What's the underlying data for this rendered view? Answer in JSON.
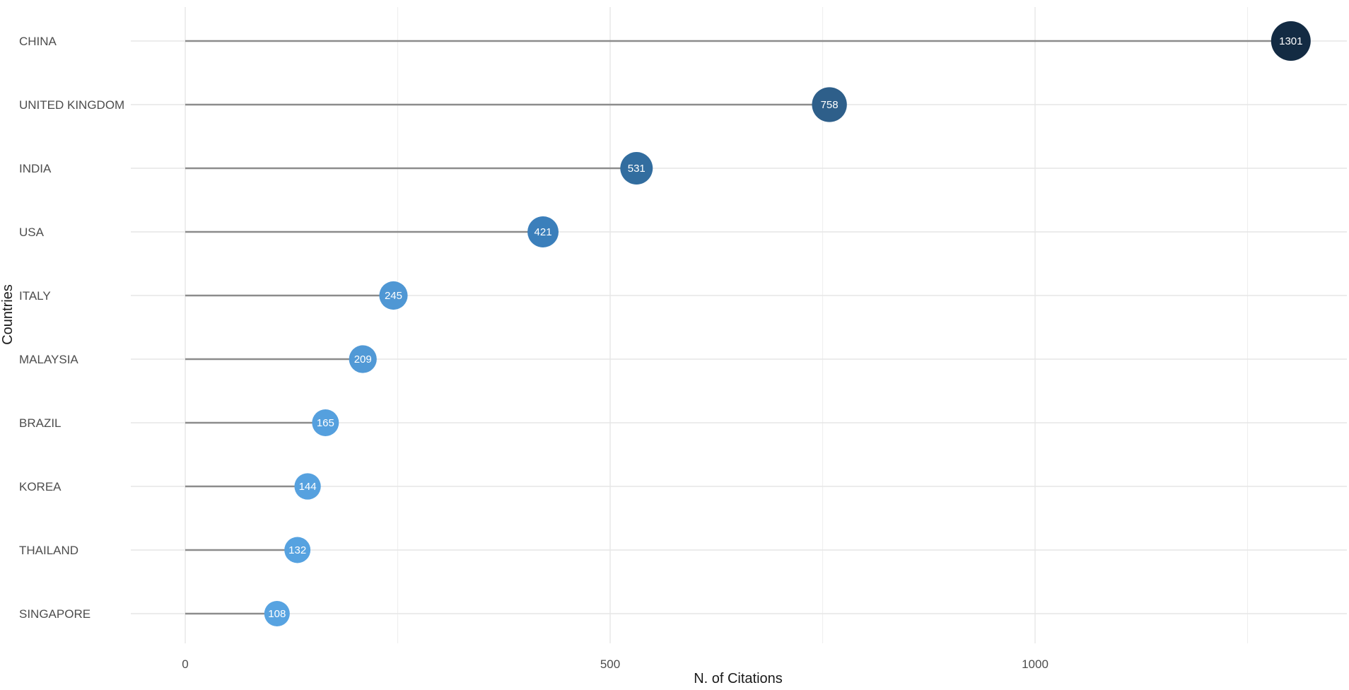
{
  "chart_data": {
    "type": "lollipop",
    "title": "",
    "xlabel": "N. of Citations",
    "ylabel": "Countries",
    "xlim": [
      0,
      1320
    ],
    "xticks": [
      0,
      500,
      1000
    ],
    "xtick_labels": [
      "0",
      "500",
      "1000"
    ],
    "grid": true,
    "legend": "none",
    "categories": [
      "CHINA",
      "UNITED KINGDOM",
      "INDIA",
      "USA",
      "ITALY",
      "MALAYSIA",
      "BRAZIL",
      "KOREA",
      "THAILAND",
      "SINGAPORE"
    ],
    "values": [
      1301,
      758,
      531,
      421,
      245,
      209,
      165,
      144,
      132,
      108
    ],
    "value_labels": [
      "1301",
      "758",
      "531",
      "421",
      "245",
      "209",
      "165",
      "144",
      "132",
      "108"
    ],
    "colors": [
      "#132b43",
      "#2e5f8a",
      "#326d9f",
      "#3b7fbb",
      "#4f97d4",
      "#5199d6",
      "#55a0de",
      "#56a1df",
      "#56a2e0",
      "#57a3e1"
    ]
  }
}
